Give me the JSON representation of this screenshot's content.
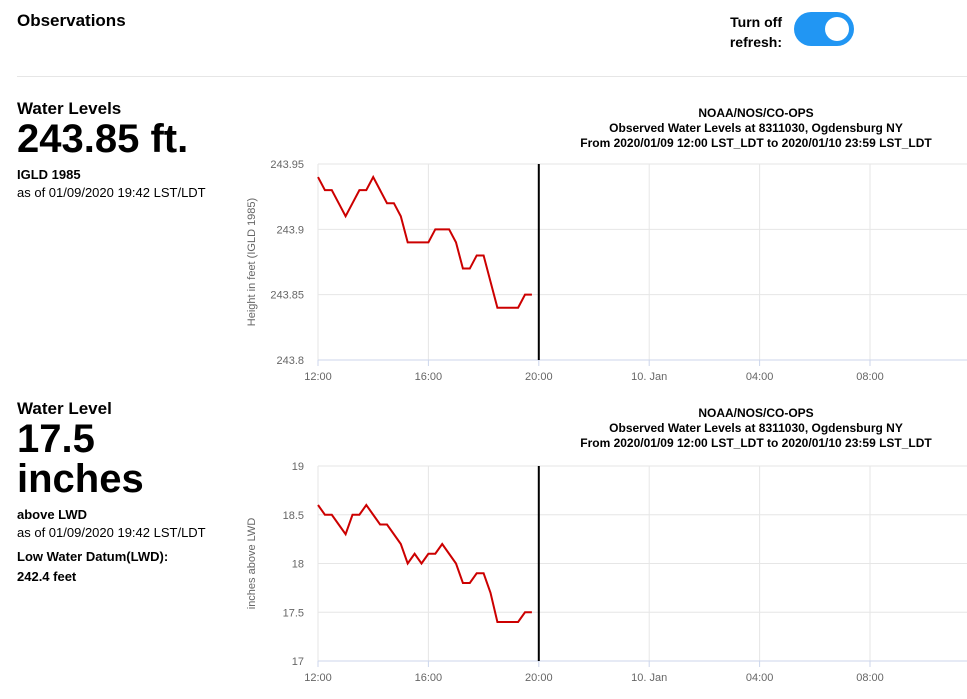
{
  "header": {
    "title": "Observations",
    "toggle_label": "Turn off refresh:",
    "toggle_on": true,
    "accent": "#2196f3"
  },
  "panels": [
    {
      "heading": "Water Levels",
      "value": "243.85 ft.",
      "datum": "IGLD 1985",
      "as_of": "as of 01/09/2020 19:42 LST/LDT",
      "chart_title": [
        "NOAA/NOS/CO-OPS",
        "Observed Water Levels at 8311030, Ogdensburg NY",
        "From 2020/01/09 12:00 LST_LDT to 2020/01/10 23:59 LST_LDT"
      ]
    },
    {
      "heading": "Water Level",
      "value_line1": "17.5",
      "value_line2": "inches",
      "datum": "above LWD",
      "as_of": "as of 01/09/2020 19:42 LST/LDT",
      "lwd_label": "Low Water Datum(LWD):",
      "lwd_value": "242.4 feet",
      "chart_title": [
        "NOAA/NOS/CO-OPS",
        "Observed Water Levels at 8311030, Ogdensburg NY",
        "From 2020/01/09 12:00 LST_LDT to 2020/01/10 23:59 LST_LDT"
      ]
    }
  ],
  "chart_data": [
    {
      "type": "line",
      "title": "NOAA/NOS/CO-OPS",
      "ylabel": "Height in feet (IGLD 1985)",
      "x_ticks": [
        "12:00",
        "16:00",
        "20:00",
        "10. Jan",
        "04:00",
        "08:00"
      ],
      "y_ticks": [
        "243.8",
        "243.85",
        "243.9",
        "243.95"
      ],
      "ylim": [
        243.8,
        243.95
      ],
      "now_marker_hours": 8,
      "line_color": "#cc0000",
      "series": [
        {
          "x_hours": [
            0,
            0.25,
            0.5,
            0.75,
            1,
            1.25,
            1.5,
            1.75,
            2,
            2.25,
            2.5,
            2.75,
            3,
            3.25,
            3.5,
            3.75,
            4,
            4.25,
            4.5,
            4.75,
            5,
            5.25,
            5.5,
            5.75,
            6,
            6.25,
            6.5,
            6.75,
            7,
            7.25,
            7.5,
            7.75
          ],
          "values": [
            243.94,
            243.93,
            243.93,
            243.92,
            243.91,
            243.92,
            243.93,
            243.93,
            243.94,
            243.93,
            243.92,
            243.92,
            243.91,
            243.89,
            243.89,
            243.89,
            243.89,
            243.9,
            243.9,
            243.9,
            243.89,
            243.87,
            243.87,
            243.88,
            243.88,
            243.86,
            243.84,
            243.84,
            243.84,
            243.84,
            243.85,
            243.85
          ]
        }
      ]
    },
    {
      "type": "line",
      "title": "NOAA/NOS/CO-OPS",
      "ylabel": "inches above LWD",
      "x_ticks": [
        "12:00",
        "16:00",
        "20:00",
        "10. Jan",
        "04:00",
        "08:00"
      ],
      "y_ticks": [
        "17",
        "17.5",
        "18",
        "18.5",
        "19"
      ],
      "ylim": [
        17,
        19
      ],
      "now_marker_hours": 8,
      "line_color": "#cc0000",
      "series": [
        {
          "x_hours": [
            0,
            0.25,
            0.5,
            0.75,
            1,
            1.25,
            1.5,
            1.75,
            2,
            2.25,
            2.5,
            2.75,
            3,
            3.25,
            3.5,
            3.75,
            4,
            4.25,
            4.5,
            4.75,
            5,
            5.25,
            5.5,
            5.75,
            6,
            6.25,
            6.5,
            6.75,
            7,
            7.25,
            7.5,
            7.75
          ],
          "values": [
            18.6,
            18.5,
            18.5,
            18.4,
            18.3,
            18.5,
            18.5,
            18.6,
            18.5,
            18.4,
            18.4,
            18.3,
            18.2,
            18.0,
            18.1,
            18.0,
            18.1,
            18.1,
            18.2,
            18.1,
            18.0,
            17.8,
            17.8,
            17.9,
            17.9,
            17.7,
            17.4,
            17.4,
            17.4,
            17.4,
            17.5,
            17.5
          ]
        }
      ]
    }
  ]
}
